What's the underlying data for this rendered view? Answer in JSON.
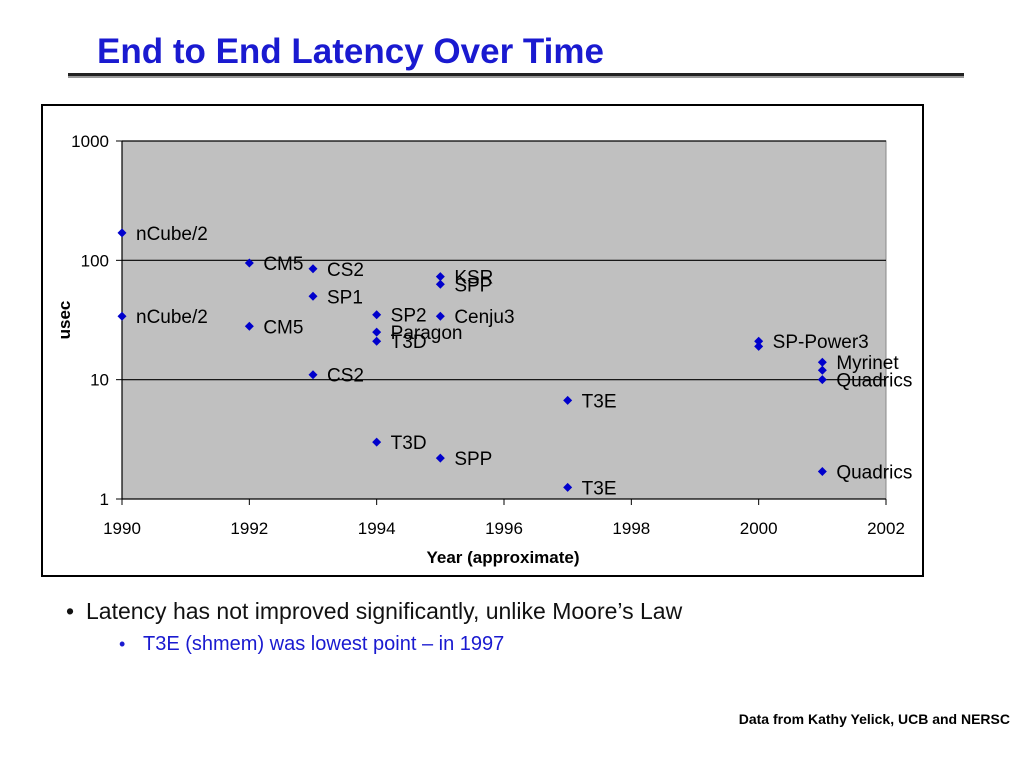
{
  "slide": {
    "title": "End to End Latency Over Time",
    "bullets": [
      {
        "text": "Latency has not improved significantly, unlike Moore’s Law",
        "sub": [
          "T3E (shmem) was lowest point – in 1997"
        ]
      }
    ],
    "credit": "Data from Kathy Yelick, UCB and NERSC"
  },
  "colors": {
    "title": "#1a1ad0",
    "marker": "#0000cc",
    "plot_bg": "#c0c0c0",
    "subbullet": "#1a1ad0"
  },
  "chart_data": {
    "type": "scatter",
    "title": "",
    "xlabel": "Year (approximate)",
    "ylabel": "usec",
    "xlim": [
      1990,
      2002
    ],
    "ylim": [
      1,
      1000
    ],
    "y_scale": "log",
    "x_ticks": [
      "1990",
      "1992",
      "1994",
      "1996",
      "1998",
      "2000",
      "2002"
    ],
    "y_ticks": [
      "1",
      "10",
      "100",
      "1000"
    ],
    "grid": "horizontal",
    "legend": "none",
    "points": [
      {
        "label": "nCube/2",
        "x": 1990,
        "y": 170
      },
      {
        "label": "nCube/2",
        "x": 1990,
        "y": 34
      },
      {
        "label": "CM5",
        "x": 1992,
        "y": 95
      },
      {
        "label": "CM5",
        "x": 1992,
        "y": 28
      },
      {
        "label": "CS2",
        "x": 1993,
        "y": 85
      },
      {
        "label": "SP1",
        "x": 1993,
        "y": 50
      },
      {
        "label": "CS2",
        "x": 1993,
        "y": 11
      },
      {
        "label": "SP2",
        "x": 1994,
        "y": 35
      },
      {
        "label": "Paragon",
        "x": 1994,
        "y": 25
      },
      {
        "label": "T3D",
        "x": 1994,
        "y": 21
      },
      {
        "label": "T3D",
        "x": 1994,
        "y": 3
      },
      {
        "label": "KSR",
        "x": 1995,
        "y": 73
      },
      {
        "label": "SPP",
        "x": 1995,
        "y": 63
      },
      {
        "label": "Cenju3",
        "x": 1995,
        "y": 34
      },
      {
        "label": "SPP",
        "x": 1995,
        "y": 2.2
      },
      {
        "label": "T3E",
        "x": 1997,
        "y": 6.7
      },
      {
        "label": "T3E",
        "x": 1997,
        "y": 1.25
      },
      {
        "label": "SP-Power3",
        "x": 2000,
        "y": 21
      },
      {
        "label": "",
        "x": 2000,
        "y": 19
      },
      {
        "label": "Myrinet",
        "x": 2001,
        "y": 14
      },
      {
        "label": "",
        "x": 2001,
        "y": 12
      },
      {
        "label": "Quadrics",
        "x": 2001,
        "y": 10
      },
      {
        "label": "Quadrics",
        "x": 2001,
        "y": 1.7
      }
    ]
  }
}
